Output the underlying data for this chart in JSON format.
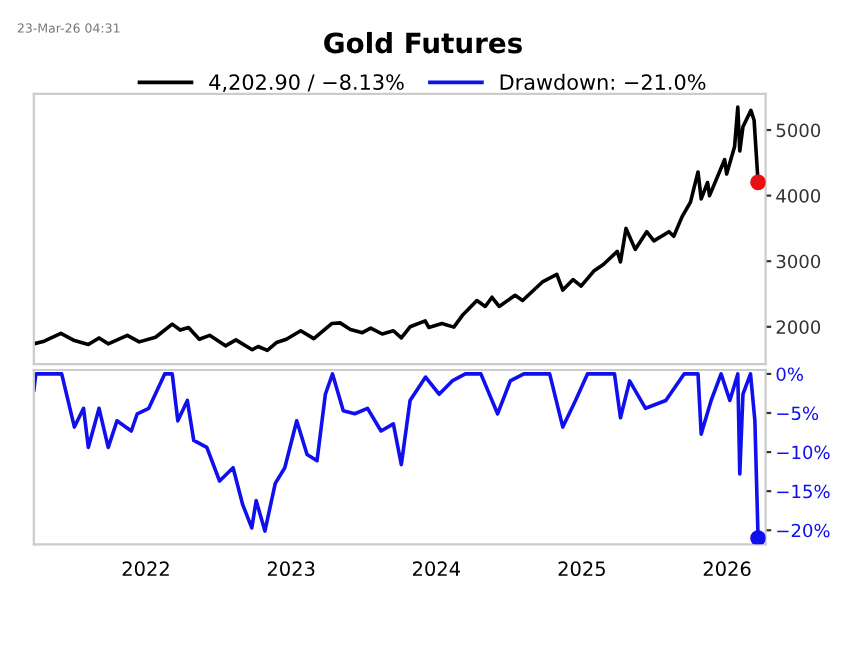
{
  "chart_data": [
    {
      "type": "line",
      "title": "Gold Futures",
      "annotations": [
        "23-Mar-26 04:31"
      ],
      "legend": "top",
      "tick_labels": "y",
      "grid": false,
      "xlim": [
        "2021-03-25",
        "2026-04-08"
      ],
      "ylim": [
        1430,
        5550
      ],
      "yticks": [
        2000,
        3000,
        4000,
        5000
      ],
      "series": [
        {
          "name": "4,202.90 / −8.13%",
          "color": "#000000",
          "x": [
            "2021-03-25",
            "2021-04-20",
            "2021-06-01",
            "2021-07-05",
            "2021-08-09",
            "2021-09-05",
            "2021-09-28",
            "2021-11-15",
            "2021-12-15",
            "2022-01-25",
            "2022-03-08",
            "2022-03-28",
            "2022-04-18",
            "2022-05-15",
            "2022-06-10",
            "2022-07-20",
            "2022-08-15",
            "2022-09-25",
            "2022-10-10",
            "2022-11-02",
            "2022-11-25",
            "2022-12-20",
            "2023-01-25",
            "2023-02-27",
            "2023-04-13",
            "2023-05-04",
            "2023-05-30",
            "2023-06-29",
            "2023-07-20",
            "2023-08-18",
            "2023-09-15",
            "2023-10-05",
            "2023-10-27",
            "2023-12-04",
            "2023-12-13",
            "2024-01-15",
            "2024-02-14",
            "2024-03-08",
            "2024-04-12",
            "2024-05-03",
            "2024-05-20",
            "2024-06-07",
            "2024-07-17",
            "2024-08-05",
            "2024-09-25",
            "2024-10-30",
            "2024-11-14",
            "2024-12-10",
            "2024-12-30",
            "2025-01-31",
            "2025-02-24",
            "2025-03-31",
            "2025-04-08",
            "2025-04-22",
            "2025-05-15",
            "2025-06-13",
            "2025-07-01",
            "2025-08-08",
            "2025-08-20",
            "2025-09-10",
            "2025-10-01",
            "2025-10-20",
            "2025-10-28",
            "2025-11-13",
            "2025-11-18",
            "2025-12-26",
            "2025-12-31",
            "2026-01-20",
            "2026-01-28",
            "2026-02-02",
            "2026-02-10",
            "2026-03-02",
            "2026-03-10",
            "2026-03-20"
          ],
          "values": [
            1740,
            1780,
            1900,
            1790,
            1730,
            1830,
            1740,
            1870,
            1770,
            1840,
            2040,
            1950,
            1990,
            1810,
            1870,
            1710,
            1800,
            1650,
            1700,
            1640,
            1760,
            1810,
            1940,
            1820,
            2050,
            2060,
            1960,
            1910,
            1980,
            1890,
            1940,
            1830,
            2000,
            2090,
            1990,
            2050,
            1995,
            2185,
            2400,
            2310,
            2450,
            2310,
            2480,
            2400,
            2690,
            2800,
            2560,
            2720,
            2620,
            2850,
            2950,
            3150,
            2990,
            3500,
            3180,
            3450,
            3310,
            3450,
            3380,
            3680,
            3900,
            4360,
            3950,
            4200,
            4000,
            4550,
            4330,
            4750,
            5350,
            4680,
            5050,
            5300,
            5150,
            4202.9
          ]
        },
        {
          "type": "scatter",
          "color": "#e81010",
          "marker": "circle",
          "x": [
            "2026-03-20"
          ],
          "values": [
            4202.9
          ]
        }
      ]
    },
    {
      "type": "line",
      "legend": "top",
      "grid": false,
      "xlim": [
        "2021-03-25",
        "2026-04-08"
      ],
      "xticks": [
        {
          "value": "2022-01-01",
          "label": "2022"
        },
        {
          "value": "2023-01-01",
          "label": "2023"
        },
        {
          "value": "2024-01-01",
          "label": "2024"
        },
        {
          "value": "2025-01-01",
          "label": "2025"
        },
        {
          "value": "2026-01-01",
          "label": "2026"
        }
      ],
      "ylim": [
        -21.8,
        0.5
      ],
      "yticks": [
        {
          "value": 0,
          "label": "0%"
        },
        {
          "value": -5,
          "label": "−5%"
        },
        {
          "value": -10,
          "label": "−10%"
        },
        {
          "value": -15,
          "label": "−15%"
        },
        {
          "value": -20,
          "label": "−20%"
        }
      ],
      "series": [
        {
          "name": "Drawdown: −21.0%",
          "color": "#1010ee",
          "x": [
            "2021-03-25",
            "2021-03-30",
            "2021-06-03",
            "2021-07-05",
            "2021-07-28",
            "2021-08-09",
            "2021-09-05",
            "2021-09-28",
            "2021-10-20",
            "2021-11-25",
            "2021-12-10",
            "2022-01-08",
            "2022-02-17",
            "2022-03-08",
            "2022-03-22",
            "2022-04-15",
            "2022-05-01",
            "2022-06-03",
            "2022-07-05",
            "2022-08-08",
            "2022-09-01",
            "2022-09-24",
            "2022-10-05",
            "2022-10-27",
            "2022-11-22",
            "2022-12-16",
            "2023-01-15",
            "2023-02-10",
            "2023-03-07",
            "2023-03-28",
            "2023-04-15",
            "2023-05-12",
            "2023-06-10",
            "2023-07-12",
            "2023-08-15",
            "2023-09-15",
            "2023-10-05",
            "2023-10-27",
            "2023-12-05",
            "2024-01-08",
            "2024-02-10",
            "2024-03-14",
            "2024-04-22",
            "2024-06-03",
            "2024-07-05",
            "2024-08-08",
            "2024-10-12",
            "2024-11-14",
            "2024-12-16",
            "2025-01-15",
            "2025-03-24",
            "2025-04-08",
            "2025-05-01",
            "2025-06-10",
            "2025-07-31",
            "2025-09-15",
            "2025-10-20",
            "2025-10-28",
            "2025-11-22",
            "2025-12-17",
            "2026-01-08",
            "2026-01-28",
            "2026-02-02",
            "2026-02-10",
            "2026-03-01",
            "2026-03-12",
            "2026-03-20"
          ],
          "values": [
            -2.1,
            0,
            0,
            -6.8,
            -4.4,
            -9.4,
            -4.4,
            -9.4,
            -6,
            -7.3,
            -5.1,
            -4.4,
            0,
            0,
            -6,
            -3.4,
            -8.5,
            -9.4,
            -13.7,
            -12,
            -16.7,
            -19.7,
            -16.2,
            -20.1,
            -14,
            -12,
            -6,
            -10.3,
            -11.1,
            -2.6,
            0,
            -4.7,
            -5.1,
            -4.4,
            -7.3,
            -6.4,
            -11.6,
            -3.4,
            -0.4,
            -2.6,
            -0.9,
            0,
            0,
            -5.1,
            -0.9,
            0,
            0,
            -6.8,
            -3.4,
            0,
            0,
            -5.6,
            -0.9,
            -4.4,
            -3.4,
            0,
            0,
            -7.7,
            -3.4,
            0,
            -3.4,
            0,
            -12.8,
            -2.6,
            0,
            -6,
            -21.0
          ]
        },
        {
          "type": "scatter",
          "color": "#1010ee",
          "marker": "circle",
          "x": [
            "2026-03-20"
          ],
          "values": [
            -21.0
          ]
        }
      ]
    }
  ]
}
